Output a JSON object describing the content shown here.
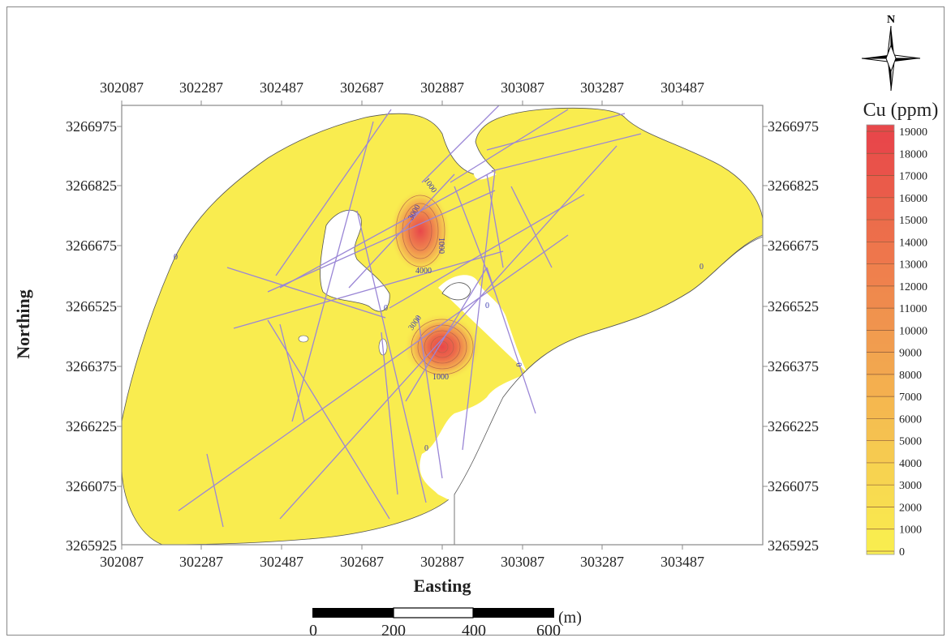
{
  "map": {
    "x_axis_title": "Easting",
    "y_axis_title": "Northing",
    "x_ticks": [
      "302087",
      "302287",
      "302487",
      "302687",
      "302887",
      "303087",
      "303287",
      "303487"
    ],
    "y_ticks": [
      "3266975",
      "3266825",
      "3266675",
      "3266525",
      "3266375",
      "3266225",
      "3266075",
      "3265925"
    ],
    "contour_labels": [
      "1000",
      "3000",
      "3000",
      "4000",
      "0",
      "0",
      "0",
      "0",
      "0",
      "0",
      "1000",
      "1000"
    ],
    "colors": {
      "fill": "#f9ec4f",
      "hot": "#e8474a",
      "fault_lines": "#9a86d6",
      "contour": "#6e5a55"
    }
  },
  "legend": {
    "title": "Cu (ppm)",
    "values": [
      "19000",
      "18000",
      "17000",
      "16000",
      "15000",
      "14000",
      "13000",
      "12000",
      "11000",
      "10000",
      "9000",
      "8000",
      "7000",
      "6000",
      "5000",
      "4000",
      "3000",
      "2000",
      "1000",
      "0"
    ],
    "colors": [
      "#e8474a",
      "#e9514a",
      "#ea5b4a",
      "#eb644b",
      "#ec6d4b",
      "#ed764c",
      "#ee804d",
      "#ef8a4d",
      "#f0934e",
      "#f19c4f",
      "#f2a64f",
      "#f3af4f",
      "#f4b84f",
      "#f5c150",
      "#f6ca50",
      "#f7d350",
      "#f8dc50",
      "#f9e44f",
      "#f9ec4f",
      "#f9ef55"
    ]
  },
  "north_arrow": {
    "label": "N"
  },
  "scale_bar": {
    "ticks": [
      "0",
      "200",
      "400",
      "600"
    ],
    "unit": "(m)"
  }
}
